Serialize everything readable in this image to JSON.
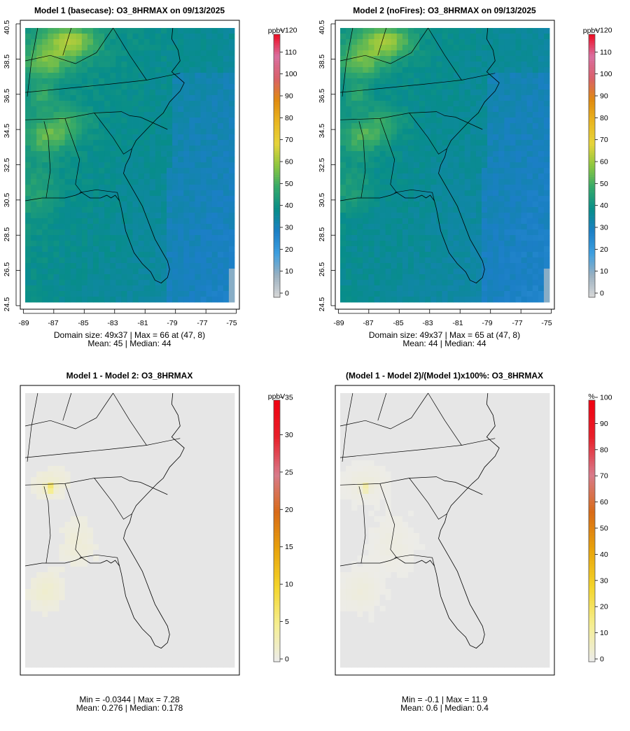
{
  "chart_data": [
    {
      "type": "heatmap",
      "title": "Model 1 (basecase): O3_8HRMAX on 09/13/2025",
      "field": "model1",
      "grid": [
        49,
        37
      ],
      "x_ticks": [
        "-89",
        "-87",
        "-85",
        "-83",
        "-81",
        "-79",
        "-77",
        "-75"
      ],
      "y_ticks": [
        "24.5",
        "26.5",
        "28.5",
        "30.5",
        "32.5",
        "34.5",
        "36.5",
        "38.5",
        "40.5"
      ],
      "xlim": [
        -89.2,
        -74.8
      ],
      "ylim": [
        24.3,
        40.7
      ],
      "colorbar": {
        "unit": "ppbV",
        "range": [
          0,
          120
        ],
        "tick_labels": [
          "0",
          "10",
          "20",
          "30",
          "40",
          "50",
          "60",
          "70",
          "80",
          "90",
          "100",
          "110",
          "120"
        ]
      },
      "stats": {
        "line1": "Domain size: 49x37 | Max = 66 at (47, 8)",
        "line2": "Mean: 45 |  Median: 44"
      },
      "values": {
        "domain_size": "49x37",
        "max": 66,
        "max_at": [
          47,
          8
        ],
        "mean": 45,
        "median": 44
      }
    },
    {
      "type": "heatmap",
      "title": "Model 2 (noFires): O3_8HRMAX on 09/13/2025",
      "field": "model2",
      "grid": [
        49,
        37
      ],
      "x_ticks": [
        "-89",
        "-87",
        "-85",
        "-83",
        "-81",
        "-79",
        "-77",
        "-75"
      ],
      "y_ticks": [
        "24.5",
        "26.5",
        "28.5",
        "30.5",
        "32.5",
        "34.5",
        "36.5",
        "38.5",
        "40.5"
      ],
      "xlim": [
        -89.2,
        -74.8
      ],
      "ylim": [
        24.3,
        40.7
      ],
      "colorbar": {
        "unit": "ppbV",
        "range": [
          0,
          120
        ],
        "tick_labels": [
          "0",
          "10",
          "20",
          "30",
          "40",
          "50",
          "60",
          "70",
          "80",
          "90",
          "100",
          "110",
          "120"
        ]
      },
      "stats": {
        "line1": "Domain size: 49x37 | Max = 65 at (47, 8)",
        "line2": "Mean: 44 |  Median: 44"
      },
      "values": {
        "domain_size": "49x37",
        "max": 65,
        "max_at": [
          47,
          8
        ],
        "mean": 44,
        "median": 44
      }
    },
    {
      "type": "heatmap",
      "title": "Model 1 - Model 2: O3_8HRMAX",
      "field": "diff",
      "colorbar": {
        "unit": "ppbV",
        "range": [
          0,
          35
        ],
        "tick_labels": [
          "0",
          "5",
          "10",
          "15",
          "20",
          "25",
          "30",
          "35"
        ]
      },
      "stats": {
        "line1": "Min = -0.0344 | Max = 7.28",
        "line2": "Mean: 0.276 |  Median: 0.178"
      },
      "values": {
        "min": -0.0344,
        "max": 7.28,
        "mean": 0.276,
        "median": 0.178
      }
    },
    {
      "type": "heatmap",
      "title": "(Model 1 - Model 2)/(Model 1)x100%: O3_8HRMAX",
      "field": "pct",
      "colorbar": {
        "unit": "%",
        "range": [
          0,
          100
        ],
        "tick_labels": [
          "0",
          "10",
          "20",
          "30",
          "40",
          "50",
          "60",
          "70",
          "80",
          "90",
          "100"
        ]
      },
      "stats": {
        "line1": "Min = -0.1 | Max = 11.9",
        "line2": "Mean: 0.6 |  Median: 0.4"
      },
      "values": {
        "min": -0.1,
        "max": 11.9,
        "mean": 0.6,
        "median": 0.4
      }
    }
  ],
  "colors": {
    "base_gradient": [
      "#d8d8d8",
      "#9ab0c0",
      "#3d9fe0",
      "#1b7fc6",
      "#078d8a",
      "#32a86a",
      "#8cc63f",
      "#e6d43a",
      "#e9b620",
      "#e08a0e",
      "#d9606a",
      "#d96fa0",
      "#ee0a20"
    ],
    "diff_gradient": [
      "#ececec",
      "#f5ee90",
      "#f4d52a",
      "#e8a30a",
      "#d86a16",
      "#d87a8a",
      "#e8202a",
      "#f00010"
    ],
    "diff_background": "#e6e6e6"
  }
}
